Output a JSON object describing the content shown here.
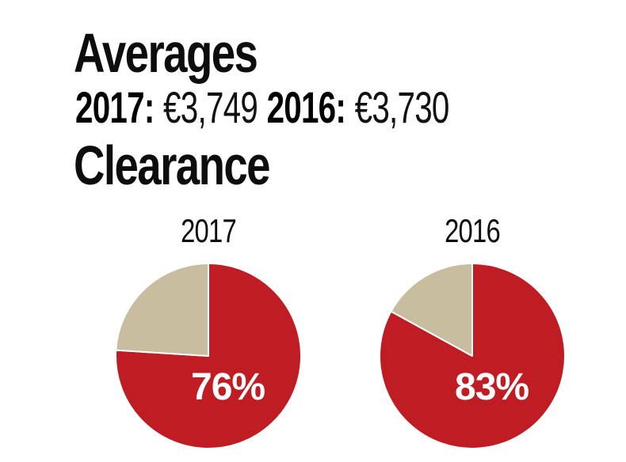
{
  "header": {
    "title": "Averages",
    "averages": [
      {
        "label": "2017:",
        "value": "€3,749"
      },
      {
        "label": "2016:",
        "value": "€3,730"
      }
    ],
    "section_title": "Clearance"
  },
  "colors": {
    "accent_red": "#c01c23",
    "accent_tan": "#c9bda0",
    "accent_gold": "#a78f55",
    "text_black": "#0d0d0d",
    "percent_label_white": "#ffffff",
    "slice_divider_white": "#ffffff"
  },
  "chart_data": [
    {
      "type": "pie",
      "title": "2017",
      "values": [
        76,
        24
      ],
      "display_labels": [
        "76%",
        ""
      ],
      "colors": [
        "#c01c23",
        "#c9bda0"
      ],
      "start_angle_deg": 0,
      "direction": "clockwise",
      "data_label": "76%"
    },
    {
      "type": "pie",
      "title": "2016",
      "values": [
        83,
        17
      ],
      "display_labels": [
        "83%",
        ""
      ],
      "colors": [
        "#c01c23",
        "#c9bda0"
      ],
      "start_angle_deg": 0,
      "direction": "clockwise",
      "data_label": "83%"
    }
  ]
}
